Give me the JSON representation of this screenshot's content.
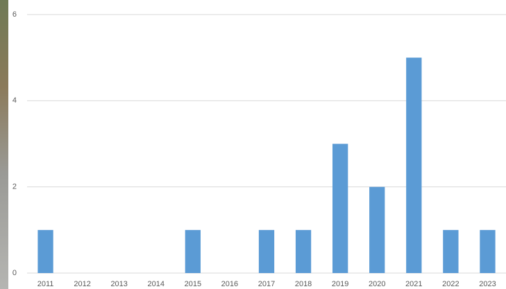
{
  "chart_data": {
    "type": "bar",
    "categories": [
      "2011",
      "2012",
      "2013",
      "2014",
      "2015",
      "2016",
      "2017",
      "2018",
      "2019",
      "2020",
      "2021",
      "2022",
      "2023"
    ],
    "values": [
      1,
      0,
      0,
      0,
      1,
      0,
      1,
      1,
      3,
      2,
      5,
      1,
      1
    ],
    "color": "#5b9bd5",
    "ylim": [
      0,
      6
    ],
    "yticks": [
      0,
      2,
      4,
      6
    ],
    "grid": true
  }
}
